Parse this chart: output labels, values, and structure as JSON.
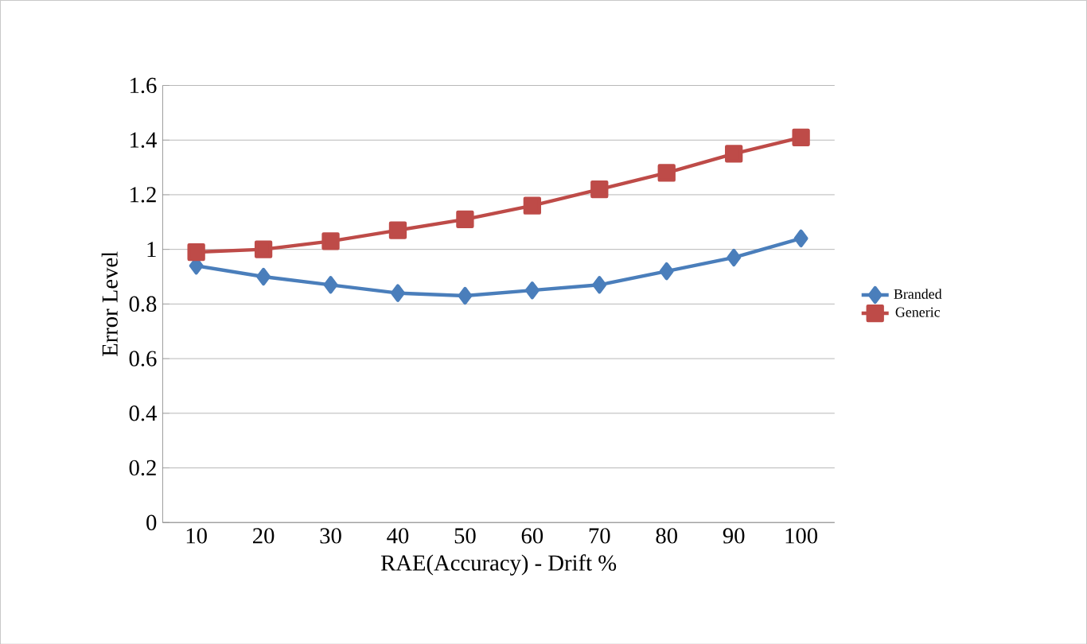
{
  "chart_data": {
    "type": "line",
    "xlabel": "RAE(Accuracy)  - Drift %",
    "ylabel": "Error Level",
    "categories": [
      "10",
      "20",
      "30",
      "40",
      "50",
      "60",
      "70",
      "80",
      "90",
      "100"
    ],
    "series": [
      {
        "name": "Branded",
        "color": "#4a7ebb",
        "marker": "diamond",
        "values": [
          0.94,
          0.9,
          0.87,
          0.84,
          0.83,
          0.85,
          0.87,
          0.92,
          0.97,
          1.04
        ]
      },
      {
        "name": "Generic",
        "color": "#be4b48",
        "marker": "square",
        "values": [
          0.99,
          1.0,
          1.03,
          1.07,
          1.11,
          1.16,
          1.22,
          1.28,
          1.35,
          1.41
        ]
      }
    ],
    "ylim": [
      0,
      1.6
    ],
    "yticks": [
      0,
      0.2,
      0.4,
      0.6,
      0.8,
      1,
      1.2,
      1.4,
      1.6
    ],
    "grid": "y",
    "legend": "right"
  }
}
